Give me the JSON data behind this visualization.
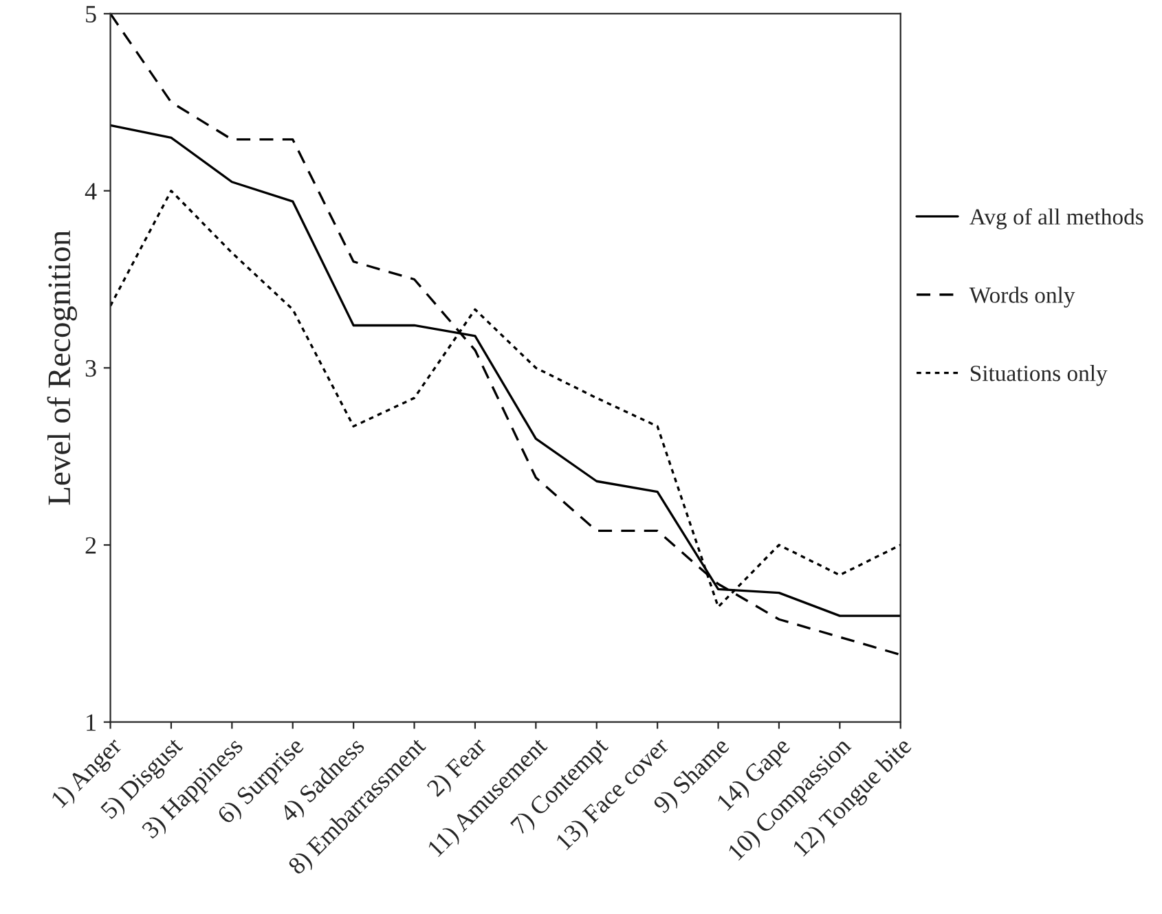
{
  "chart_data": {
    "type": "line",
    "ylabel": "Level of Recognition",
    "categories": [
      "1) Anger",
      "5) Disgust",
      "3) Happiness",
      "6) Surprise",
      "4) Sadness",
      "8) Embarrassment",
      "2) Fear",
      "11) Amusement",
      "7) Contempt",
      "13) Face cover",
      "9) Shame",
      "14) Gape",
      "10) Compassion",
      "12) Tongue bite"
    ],
    "series": [
      {
        "name": "Avg of all methods",
        "color": "#000000",
        "line_style": "solid",
        "values": [
          4.37,
          4.3,
          4.05,
          3.94,
          3.24,
          3.24,
          3.18,
          2.6,
          2.36,
          2.3,
          1.75,
          1.73,
          1.6,
          1.6
        ]
      },
      {
        "name": "Words only",
        "color": "#000000",
        "line_style": "dashed",
        "values": [
          5,
          4.5,
          4.29,
          4.29,
          3.6,
          3.5,
          3.1,
          2.38,
          2.08,
          2.08,
          1.78,
          1.58,
          1.48,
          1.38
        ]
      },
      {
        "name": "Situations only",
        "color": "#000000",
        "line_style": "dotted",
        "values": [
          3.35,
          4.0,
          3.65,
          3.33,
          2.67,
          2.83,
          3.33,
          3.0,
          2.83,
          2.67,
          1.65,
          2.0,
          1.83,
          2.0
        ]
      }
    ],
    "ylim": [
      1,
      5
    ],
    "yticks": [
      1,
      2,
      3,
      4,
      5
    ],
    "grid": false,
    "legend": "right",
    "marker": "none"
  }
}
